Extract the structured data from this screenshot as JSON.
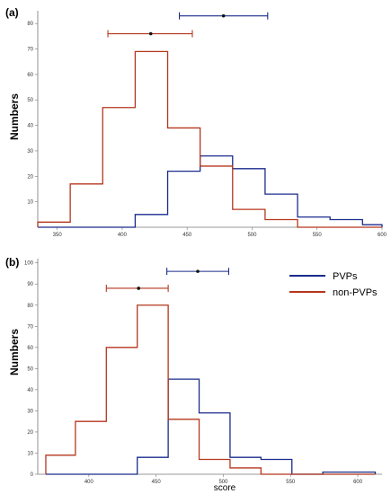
{
  "chart_data": [
    {
      "type": "histogram",
      "panel_label": "(a)",
      "ylabel": "Numbers",
      "xlabel": "",
      "xlim": [
        335,
        600
      ],
      "ylim": [
        0,
        85
      ],
      "x_ticks": [
        350,
        400,
        450,
        500,
        550,
        600
      ],
      "y_ticks": [
        10,
        20,
        30,
        40,
        50,
        60,
        70,
        80
      ],
      "series": [
        {
          "color": "#1a2b8c",
          "bin_edges": [
            335,
            360,
            385,
            410,
            435,
            460,
            485,
            510,
            535,
            560,
            585,
            600
          ],
          "counts": [
            0,
            0,
            0,
            5,
            22,
            28,
            23,
            13,
            4,
            3,
            1
          ],
          "errorbar": {
            "center": 478,
            "low": 444,
            "high": 512,
            "y": 83
          }
        },
        {
          "color": "#b5361c",
          "bin_edges": [
            335,
            360,
            385,
            410,
            435,
            460,
            485,
            510,
            535,
            560,
            585,
            600
          ],
          "counts": [
            2,
            17,
            47,
            69,
            39,
            24,
            7,
            3,
            0,
            0,
            0
          ],
          "errorbar": {
            "center": 422,
            "low": 389,
            "high": 454,
            "y": 76
          }
        }
      ],
      "grid": false,
      "legend": "none"
    },
    {
      "type": "histogram",
      "panel_label": "(b)",
      "ylabel": "Numbers",
      "xlabel": "score",
      "xlim": [
        362,
        618
      ],
      "ylim": [
        0,
        102
      ],
      "x_ticks": [
        400,
        450,
        500,
        550,
        600
      ],
      "y_ticks": [
        0,
        10,
        20,
        30,
        40,
        50,
        60,
        70,
        80,
        90,
        100
      ],
      "series": [
        {
          "name": "PVPs",
          "color": "#1a2b8c",
          "bin_edges": [
            368,
            390,
            413,
            436,
            459,
            482,
            505,
            528,
            551,
            574,
            597,
            613
          ],
          "counts": [
            0,
            0,
            0,
            8,
            45,
            29,
            8,
            7,
            0,
            1,
            1
          ],
          "errorbar": {
            "center": 481,
            "low": 458,
            "high": 504,
            "y": 96
          }
        },
        {
          "name": "non-PVPs",
          "color": "#b5361c",
          "bin_edges": [
            368,
            390,
            413,
            436,
            459,
            482,
            505,
            528,
            551,
            574,
            597,
            613
          ],
          "counts": [
            9,
            25,
            60,
            80,
            26,
            7,
            3,
            0,
            0,
            0,
            0
          ],
          "errorbar": {
            "center": 437,
            "low": 413,
            "high": 459,
            "y": 88
          }
        }
      ],
      "grid": false,
      "legend": "top-right"
    }
  ]
}
